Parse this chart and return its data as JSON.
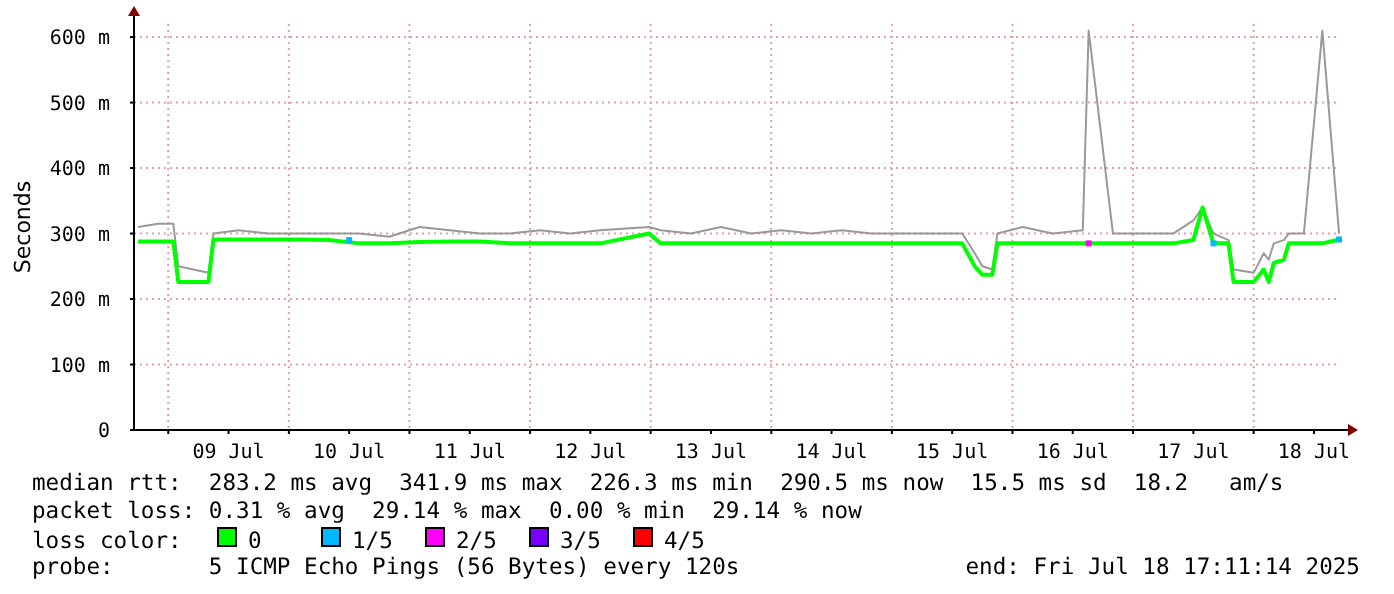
{
  "chart_data": {
    "type": "line",
    "ylabel": "Seconds",
    "xlim": [
      "2025-07-08T17:11",
      "2025-07-18T17:11"
    ],
    "xticks": [
      {
        "value": "2025-07-09T00:00",
        "label": null
      },
      {
        "value": "2025-07-09T12:00",
        "label": "09 Jul"
      },
      {
        "value": "2025-07-10T00:00",
        "label": null
      },
      {
        "value": "2025-07-10T12:00",
        "label": "10 Jul"
      },
      {
        "value": "2025-07-11T00:00",
        "label": null
      },
      {
        "value": "2025-07-11T12:00",
        "label": "11 Jul"
      },
      {
        "value": "2025-07-12T00:00",
        "label": null
      },
      {
        "value": "2025-07-12T12:00",
        "label": "12 Jul"
      },
      {
        "value": "2025-07-13T00:00",
        "label": null
      },
      {
        "value": "2025-07-13T12:00",
        "label": "13 Jul"
      },
      {
        "value": "2025-07-14T00:00",
        "label": null
      },
      {
        "value": "2025-07-14T12:00",
        "label": "14 Jul"
      },
      {
        "value": "2025-07-15T00:00",
        "label": null
      },
      {
        "value": "2025-07-15T12:00",
        "label": "15 Jul"
      },
      {
        "value": "2025-07-16T00:00",
        "label": null
      },
      {
        "value": "2025-07-16T12:00",
        "label": "16 Jul"
      },
      {
        "value": "2025-07-17T00:00",
        "label": null
      },
      {
        "value": "2025-07-17T12:00",
        "label": "17 Jul"
      },
      {
        "value": "2025-07-18T00:00",
        "label": null
      },
      {
        "value": "2025-07-18T12:00",
        "label": "18 Jul"
      }
    ],
    "ylim": [
      0,
      620
    ],
    "yticks": [
      0,
      {
        "value": 100,
        "label": "100 m"
      },
      {
        "value": 200,
        "label": "200 m"
      },
      {
        "value": 300,
        "label": "300 m"
      },
      {
        "value": 400,
        "label": "400 m"
      },
      {
        "value": 500,
        "label": "500 m"
      },
      {
        "value": 600,
        "label": "600 m"
      }
    ],
    "grid": true,
    "legend": "bottom",
    "legend_title": "loss color:",
    "x": [
      "2025-07-08T18:00",
      "2025-07-08T22:00",
      "2025-07-09T01:00",
      "2025-07-09T02:00",
      "2025-07-09T05:00",
      "2025-07-09T08:00",
      "2025-07-09T09:00",
      "2025-07-09T14:00",
      "2025-07-09T20:00",
      "2025-07-10T02:00",
      "2025-07-10T08:00",
      "2025-07-10T14:00",
      "2025-07-10T20:00",
      "2025-07-11T02:00",
      "2025-07-11T08:00",
      "2025-07-11T14:00",
      "2025-07-11T20:00",
      "2025-07-12T02:00",
      "2025-07-12T08:00",
      "2025-07-12T14:00",
      "2025-07-12T23:40",
      "2025-07-13T02:00",
      "2025-07-13T08:00",
      "2025-07-13T14:00",
      "2025-07-13T20:00",
      "2025-07-14T02:00",
      "2025-07-14T08:00",
      "2025-07-14T14:00",
      "2025-07-14T20:00",
      "2025-07-15T02:00",
      "2025-07-15T08:00",
      "2025-07-15T14:00",
      "2025-07-15T16:30",
      "2025-07-15T18:00",
      "2025-07-15T20:00",
      "2025-07-15T21:00",
      "2025-07-16T02:00",
      "2025-07-16T08:00",
      "2025-07-16T14:00",
      "2025-07-16T15:10",
      "2025-07-16T20:00",
      "2025-07-17T02:00",
      "2025-07-17T08:00",
      "2025-07-17T12:00",
      "2025-07-17T13:50",
      "2025-07-17T16:00",
      "2025-07-17T19:00",
      "2025-07-17T20:00",
      "2025-07-18T00:00",
      "2025-07-18T02:00",
      "2025-07-18T03:00",
      "2025-07-18T04:00",
      "2025-07-18T06:00",
      "2025-07-18T07:00",
      "2025-07-18T10:00",
      "2025-07-18T13:40",
      "2025-07-18T17:00"
    ],
    "series": [
      {
        "color": "#999999",
        "values": [
          310,
          315,
          315,
          250,
          245,
          240,
          300,
          305,
          300,
          300,
          300,
          300,
          295,
          310,
          305,
          300,
          300,
          305,
          300,
          305,
          310,
          305,
          300,
          310,
          300,
          305,
          300,
          305,
          300,
          300,
          300,
          300,
          270,
          250,
          245,
          300,
          310,
          300,
          305,
          610,
          300,
          300,
          300,
          320,
          340,
          300,
          290,
          245,
          240,
          270,
          260,
          285,
          290,
          300,
          300,
          610,
          300
        ]
      },
      {
        "name": "0",
        "color": "#00ff00",
        "values": [
          288,
          288,
          288,
          226,
          226,
          226,
          291,
          291,
          291,
          291,
          290,
          285,
          285,
          287,
          288,
          288,
          285,
          285,
          285,
          285,
          300,
          285,
          285,
          285,
          285,
          285,
          285,
          285,
          285,
          285,
          285,
          285,
          250,
          237,
          237,
          285,
          285,
          285,
          285,
          285,
          285,
          285,
          285,
          290,
          340,
          285,
          285,
          226,
          226,
          245,
          226,
          255,
          260,
          285,
          285,
          285,
          291
        ]
      },
      {
        "name": "1/5",
        "type": "scatter",
        "marker": "square",
        "color": "#00b8ff",
        "x": [
          "2025-07-10T12:00",
          "2025-07-17T16:00",
          "2025-07-18T17:00"
        ],
        "values": [
          290,
          285,
          291
        ]
      },
      {
        "name": "2/5",
        "type": "scatter",
        "marker": "square",
        "color": "#ff00ff",
        "x": [
          "2025-07-16T15:10"
        ],
        "values": [
          285
        ]
      },
      {
        "name": "3/5",
        "type": "scatter",
        "marker": "square",
        "color": "#7700ff",
        "values": [
          null,
          null,
          null,
          null,
          null,
          null,
          null,
          null,
          null,
          null,
          null,
          null,
          null,
          null,
          null,
          null,
          null,
          null,
          null,
          null,
          null,
          null,
          null,
          null,
          null,
          null,
          null,
          null,
          null,
          null,
          null,
          null,
          null,
          null,
          null,
          null,
          null,
          null,
          null,
          null,
          null,
          null,
          null,
          null,
          null,
          null,
          null,
          null,
          null,
          null,
          null,
          null,
          null,
          null,
          null,
          null,
          null
        ]
      },
      {
        "name": "4/5",
        "type": "scatter",
        "marker": "square",
        "color": "#ff0000",
        "values": [
          null,
          null,
          null,
          null,
          null,
          null,
          null,
          null,
          null,
          null,
          null,
          null,
          null,
          null,
          null,
          null,
          null,
          null,
          null,
          null,
          null,
          null,
          null,
          null,
          null,
          null,
          null,
          null,
          null,
          null,
          null,
          null,
          null,
          null,
          null,
          null,
          null,
          null,
          null,
          null,
          null,
          null,
          null,
          null,
          null,
          null,
          null,
          null,
          null,
          null,
          null,
          null,
          null,
          null,
          null,
          null,
          null
        ]
      }
    ],
    "annotations": [
      "median rtt:  283.2 ms avg  341.9 ms max  226.3 ms min  290.5 ms now  15.5 ms sd  18.2   am/s",
      "packet loss: 0.31 % avg  29.14 % max  0.00 % min  29.14 % now",
      "probe:       5 ICMP Echo Pings (56 Bytes) every 120s",
      "end: Fri Jul 18 17:11:14 2025"
    ]
  }
}
